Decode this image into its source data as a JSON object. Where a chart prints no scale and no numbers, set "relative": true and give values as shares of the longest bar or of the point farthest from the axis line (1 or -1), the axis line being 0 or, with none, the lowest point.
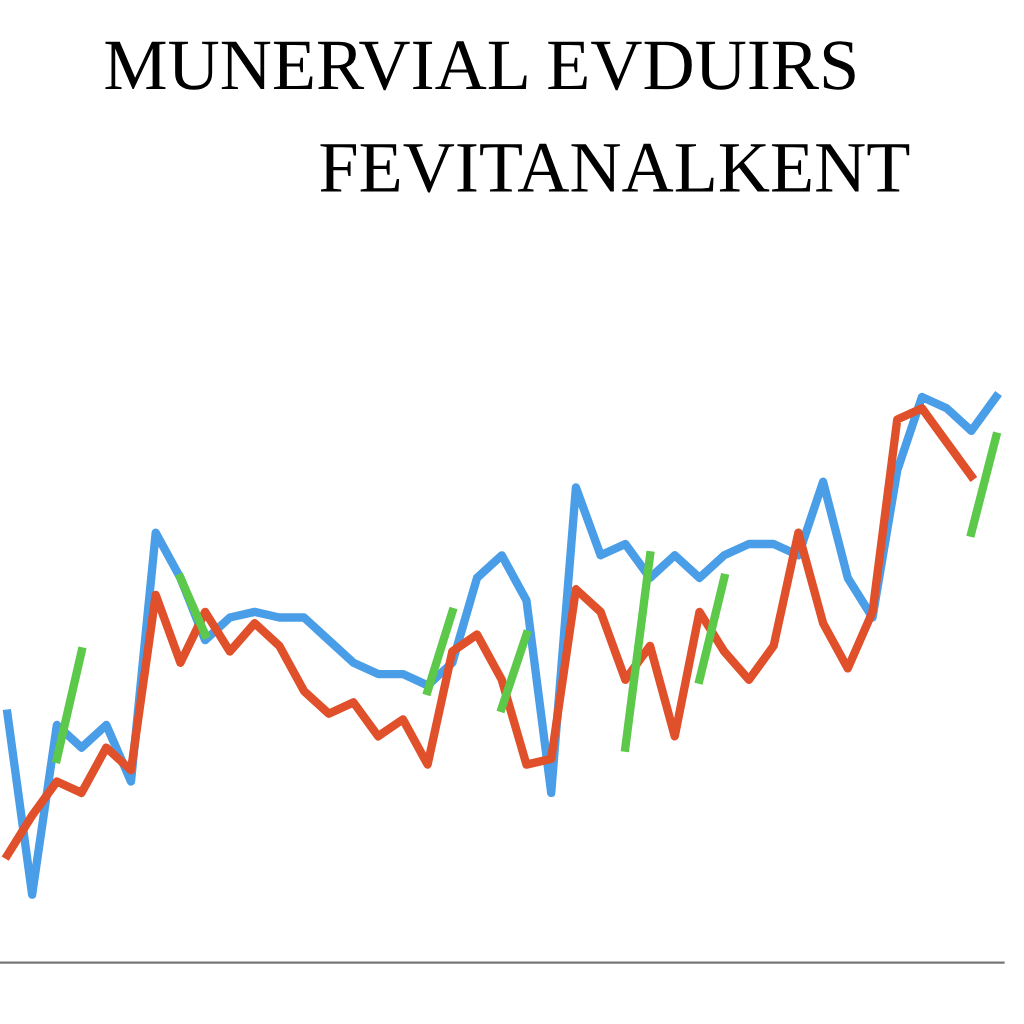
{
  "chart_data": {
    "type": "line",
    "title": "MUNERVIAL EVDUIRS",
    "subtitle": "FEVITANALKENT",
    "relative": true,
    "grid": false,
    "legend": false,
    "marker": "none",
    "line_style": "solid",
    "categories": [
      null,
      null,
      null,
      null,
      null,
      null,
      null,
      null,
      null,
      null,
      null,
      null,
      null,
      null,
      null,
      null,
      null,
      null,
      null,
      null,
      null,
      null,
      null,
      null,
      null,
      null,
      null,
      null,
      null,
      null,
      null,
      null,
      null,
      null,
      null,
      null,
      null,
      null,
      null,
      null,
      null
    ],
    "series": [
      {
        "color": "#4a9ee8",
        "values": [
          0.44,
          0.12,
          0.42,
          0.38,
          0.42,
          0.32,
          0.76,
          0.68,
          0.57,
          0.61,
          0.62,
          0.61,
          0.61,
          0.57,
          0.53,
          0.51,
          0.51,
          0.49,
          0.53,
          0.68,
          0.72,
          0.64,
          0.3,
          0.84,
          0.72,
          0.74,
          0.68,
          0.72,
          0.68,
          0.72,
          0.74,
          0.74,
          0.72,
          0.85,
          0.68,
          0.61,
          0.87,
          1.0,
          0.98,
          0.94,
          1.0
        ]
      },
      {
        "color": "#e0502a",
        "values": [
          0.19,
          0.26,
          0.32,
          0.3,
          0.38,
          0.34,
          0.65,
          0.53,
          0.62,
          0.55,
          0.6,
          0.56,
          0.48,
          0.44,
          0.46,
          0.4,
          0.43,
          0.35,
          0.55,
          0.58,
          0.5,
          0.35,
          0.36,
          0.66,
          0.62,
          0.5,
          0.56,
          0.4,
          0.62,
          0.55,
          0.5,
          0.56,
          0.76,
          0.6,
          0.52,
          0.62,
          0.96,
          0.98,
          0.92,
          0.86,
          null
        ]
      },
      {
        "color": "#5cc94a",
        "values": [
          null,
          null,
          0.36,
          0.55,
          null,
          null,
          null,
          0.68,
          0.58,
          null,
          null,
          null,
          null,
          null,
          null,
          null,
          null,
          0.48,
          0.62,
          null,
          0.45,
          0.58,
          null,
          null,
          null,
          0.38,
          0.72,
          null,
          0.5,
          0.68,
          null,
          null,
          null,
          null,
          null,
          null,
          null,
          null,
          null,
          0.76,
          0.93
        ]
      }
    ]
  }
}
